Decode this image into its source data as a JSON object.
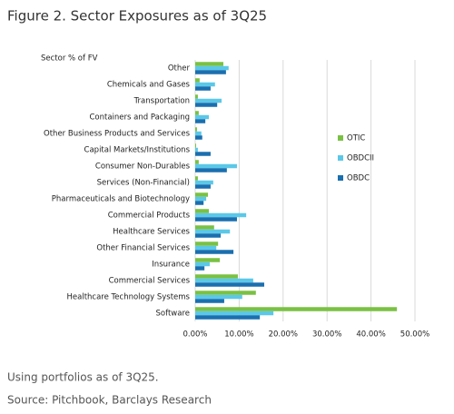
{
  "chart_data": {
    "type": "hbar",
    "title": "Figure 2. Sector Exposures as of 3Q25",
    "y_label": "Sector % of FV",
    "notes": [
      "Using portfolios as of 3Q25.",
      "Source: Pitchbook, Barclays Research"
    ],
    "categories": [
      "Other",
      "Chemicals and Gases",
      "Transportation",
      "Containers and Packaging",
      "Other Business Products and Services",
      "Capital Markets/Institutions",
      "Consumer Non-Durables",
      "Services (Non-Financial)",
      "Pharmaceuticals and Biotechnology",
      "Commercial Products",
      "Healthcare Services",
      "Other Financial Services",
      "Insurance",
      "Commercial Services",
      "Healthcare Technology Systems",
      "Software"
    ],
    "series": [
      {
        "name": "OTIC",
        "color": "#7ac143",
        "values": [
          6.4,
          1.0,
          0.6,
          0.8,
          0.4,
          0.2,
          0.8,
          0.6,
          2.9,
          3.1,
          4.3,
          5.2,
          5.6,
          9.7,
          13.8,
          45.9
        ]
      },
      {
        "name": "OBDCII",
        "color": "#5bc8e8",
        "values": [
          7.6,
          4.5,
          6.0,
          3.1,
          1.4,
          0.6,
          9.5,
          4.1,
          2.5,
          11.6,
          7.9,
          4.8,
          3.3,
          13.2,
          10.7,
          17.8
        ]
      },
      {
        "name": "OBDC",
        "color": "#1a6faf",
        "values": [
          7.0,
          3.5,
          5.0,
          2.3,
          1.6,
          3.5,
          7.2,
          3.5,
          1.9,
          9.5,
          5.8,
          8.7,
          2.1,
          15.7,
          6.6,
          14.7
        ]
      }
    ],
    "xlim": [
      0,
      50
    ],
    "xticks": [
      {
        "value": 0,
        "label": "0.00%"
      },
      {
        "value": 10,
        "label": "10.00%"
      },
      {
        "value": 20,
        "label": "20.00%"
      },
      {
        "value": 30,
        "label": "30.00%"
      },
      {
        "value": 40,
        "label": "40.00%"
      },
      {
        "value": 50,
        "label": "50.00%"
      }
    ],
    "grid": true,
    "legend_position": "right"
  }
}
